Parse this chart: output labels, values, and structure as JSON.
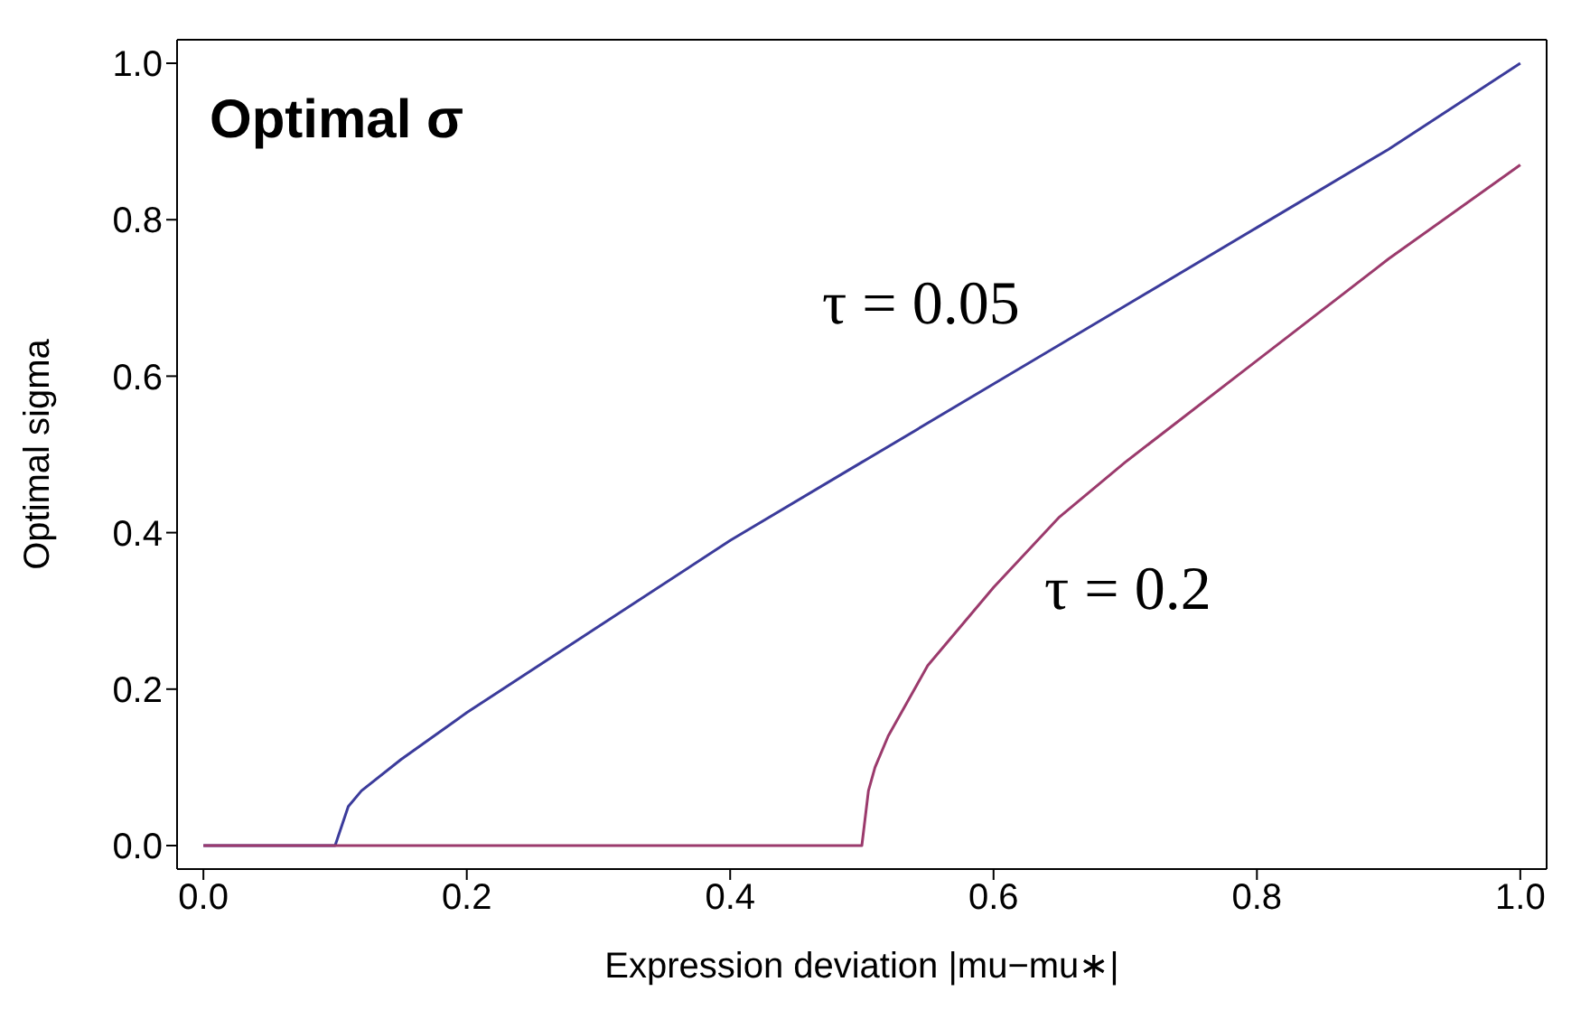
{
  "chart_data": {
    "type": "line",
    "title": "Optimal σ",
    "xlabel": "Expression deviation |mu−mu∗|",
    "ylabel": "Optimal sigma",
    "series": [
      {
        "x": [
          0,
          0.1,
          0.11,
          0.12,
          0.15,
          0.2,
          0.3,
          0.4,
          0.5,
          0.6,
          0.7,
          0.8,
          0.9,
          1.0
        ],
        "values": [
          0,
          0,
          0.05,
          0.07,
          0.11,
          0.17,
          0.28,
          0.39,
          0.49,
          0.59,
          0.69,
          0.79,
          0.89,
          1.0
        ],
        "color": "#3b3b9b"
      },
      {
        "x": [
          0,
          0.5,
          0.505,
          0.51,
          0.52,
          0.55,
          0.6,
          0.65,
          0.7,
          0.8,
          0.9,
          1.0
        ],
        "values": [
          0,
          0,
          0.07,
          0.1,
          0.14,
          0.23,
          0.33,
          0.42,
          0.49,
          0.62,
          0.75,
          0.87
        ],
        "color": "#9b3a6c"
      }
    ],
    "annotations": [
      "τ = 0.05",
      "τ = 0.2"
    ],
    "xlim": [
      -0.02,
      1.02
    ],
    "ylim": [
      -0.03,
      1.03
    ],
    "xticks": [
      {
        "value": 0,
        "label": "0.0"
      },
      0.2,
      0.4,
      0.6,
      0.8,
      {
        "value": 1,
        "label": "1.0"
      }
    ],
    "yticks": [
      {
        "value": 0,
        "label": "0.0"
      },
      0.2,
      0.4,
      0.6,
      0.8,
      {
        "value": 1,
        "label": "1.0"
      }
    ],
    "grid": false
  }
}
